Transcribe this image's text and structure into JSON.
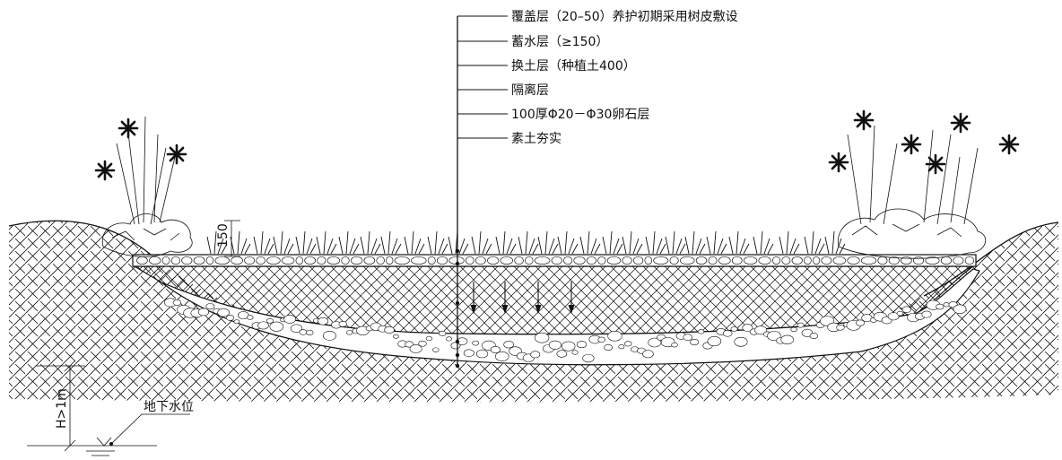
{
  "callout": {
    "layers": [
      {
        "id": "cover",
        "text": "覆盖层（20–50）养护初期采用树皮敷设"
      },
      {
        "id": "storage",
        "text": "蓄水层（≥150）"
      },
      {
        "id": "soil",
        "text": "换土层（种植土400）"
      },
      {
        "id": "isolation",
        "text": "隔离层"
      },
      {
        "id": "gravel",
        "text": "100厚Φ20－Φ30卵石层"
      },
      {
        "id": "subgrade",
        "text": "素土夯实"
      }
    ]
  },
  "dimensions": {
    "ponding_depth": "150",
    "water_table_depth": "H>1m"
  },
  "groundwater": {
    "label": "地下水位"
  },
  "colors": {
    "ink": "#111111",
    "background": "#ffffff"
  },
  "icons": [
    "infiltration-arrow-icon",
    "flower-icon",
    "water-table-symbol-icon"
  ]
}
